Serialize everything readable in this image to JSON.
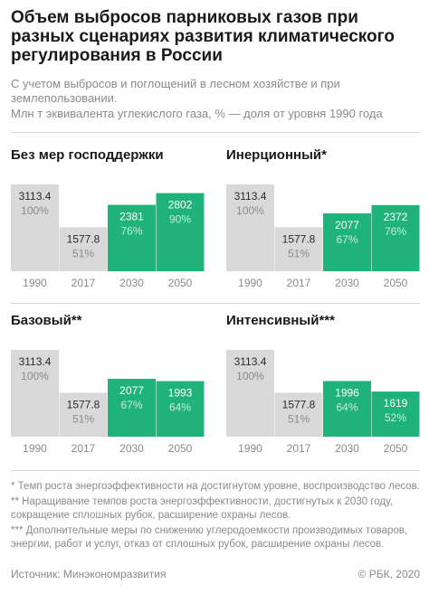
{
  "title": "Объем выбросов парниковых газов при разных сценариях развития климатического регулирования в России",
  "subtitle": "С учетом выбросов и поглощений в лесном хозяйстве и при землепользовании.",
  "unit_note": "Млн т эквивалента углекислого газа, % — доля от уровня 1990 года",
  "colors": {
    "historical": "#d9d9d9",
    "scenario": "#1fb37a",
    "text_dark": "#1a1a1a",
    "text_gray": "#8a8a8a"
  },
  "chart_data": [
    {
      "type": "bar",
      "title": "Без мер господдержки",
      "categories": [
        "1990",
        "2017",
        "2030",
        "2050"
      ],
      "values": [
        3113.4,
        1577.8,
        2381,
        2802
      ],
      "value_labels": [
        "3113.4",
        "1577.8",
        "2381",
        "2802"
      ],
      "percent_labels": [
        "100%",
        "51%",
        "76%",
        "90%"
      ]
    },
    {
      "type": "bar",
      "title": "Инерционный*",
      "categories": [
        "1990",
        "2017",
        "2030",
        "2050"
      ],
      "values": [
        3113.4,
        1577.8,
        2077,
        2372
      ],
      "value_labels": [
        "3113.4",
        "1577.8",
        "2077",
        "2372"
      ],
      "percent_labels": [
        "100%",
        "51%",
        "67%",
        "76%"
      ]
    },
    {
      "type": "bar",
      "title": "Базовый**",
      "categories": [
        "1990",
        "2017",
        "2030",
        "2050"
      ],
      "values": [
        3113.4,
        1577.8,
        2077,
        1993
      ],
      "value_labels": [
        "3113.4",
        "1577.8",
        "2077",
        "1993"
      ],
      "percent_labels": [
        "100%",
        "51%",
        "67%",
        "64%"
      ]
    },
    {
      "type": "bar",
      "title": "Интенсивный***",
      "categories": [
        "1990",
        "2017",
        "2030",
        "2050"
      ],
      "values": [
        3113.4,
        1577.8,
        1996,
        1619
      ],
      "value_labels": [
        "3113.4",
        "1577.8",
        "1996",
        "1619"
      ],
      "percent_labels": [
        "100%",
        "51%",
        "64%",
        "52%"
      ]
    }
  ],
  "notes": [
    "* Темп роста энергоэффективности на достигнутом уровне, воспроизводство лесов.",
    "** Наращивание темпов роста энергоэффективности, достигнутых к 2030 году, сокращение сплошных рубок, расширение охраны лесов.",
    "*** Дополнительные меры по снижению углеродоемкости производимых товаров, энергии, работ и услуг, отказ от сплошных рубок, расширение охраны лесов."
  ],
  "footer": {
    "source": "Источник: Минэкономразвития",
    "copyright": "© РБК, 2020"
  }
}
